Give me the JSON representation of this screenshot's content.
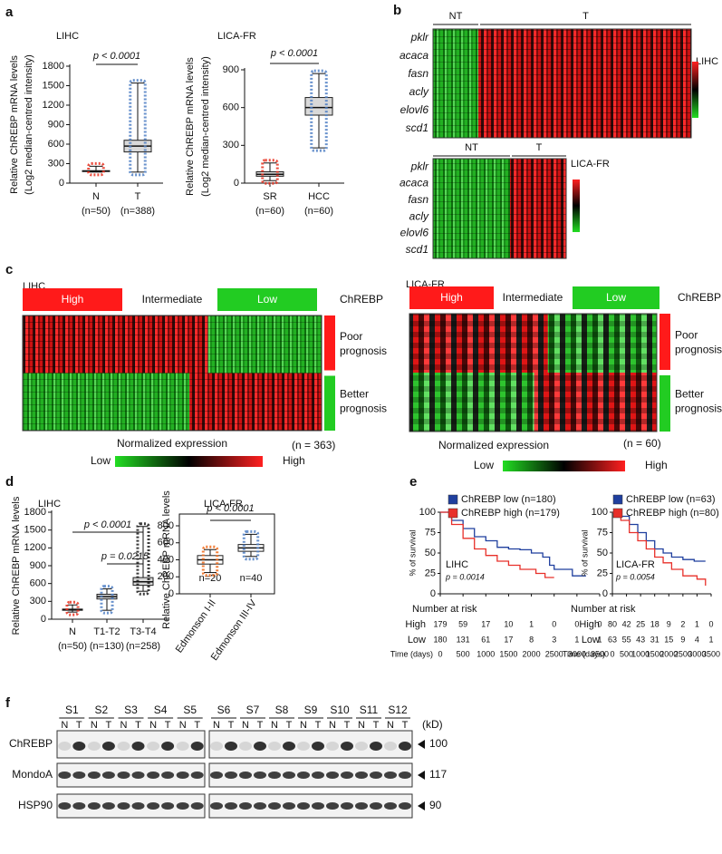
{
  "panel_labels": [
    "a",
    "b",
    "c",
    "d",
    "e",
    "f"
  ],
  "chart_data": [
    {
      "type": "box",
      "title": "LIHC",
      "y_label": [
        "Relative ChREBP mRNA levels",
        "(Log2 median-centred intensity)"
      ],
      "categories": [
        "N",
        "T"
      ],
      "group_sizes": [
        "(n=50)",
        "(n=388)"
      ],
      "boxes": [
        {
          "min": 170,
          "q1": 180,
          "median": 185,
          "q3": 192,
          "max": 260,
          "color": "#e8301f"
        },
        {
          "min": 170,
          "q1": 480,
          "median": 570,
          "q3": 660,
          "max": 1540,
          "color": "#4f7fc4"
        }
      ],
      "box_fill": "#d9d9d9",
      "ylim": [
        0,
        1800
      ],
      "yticks": [
        0,
        300,
        600,
        900,
        1200,
        1500,
        1800
      ],
      "annotations": [
        {
          "text": "p < 0.0001",
          "between": [
            "N",
            "T"
          ]
        }
      ]
    },
    {
      "type": "box",
      "title": "LICA-FR",
      "y_label": [
        "Relative ChREBP mRNA levels",
        "(Log2 median-centred intensity)"
      ],
      "categories": [
        "SR",
        "HCC"
      ],
      "group_sizes": [
        "(n=60)",
        "(n=60)"
      ],
      "boxes": [
        {
          "min": 20,
          "q1": 55,
          "median": 70,
          "q3": 90,
          "max": 160,
          "color": "#e8301f"
        },
        {
          "min": 280,
          "q1": 540,
          "median": 600,
          "q3": 680,
          "max": 870,
          "color": "#4f7fc4"
        }
      ],
      "box_fill": "#d9d9d9",
      "ylim": [
        0,
        900
      ],
      "yticks": [
        0,
        300,
        600,
        900
      ],
      "annotations": [
        {
          "text": "p < 0.0001",
          "between": [
            "SR",
            "HCC"
          ]
        }
      ]
    },
    {
      "type": "box",
      "title": "LIHC",
      "y_label": "Relative ChREBP mRNA levels",
      "categories": [
        "N",
        "T1-T2",
        "T3-T4"
      ],
      "group_sizes": [
        "(n=50)",
        "(n=130)",
        "(n=258)"
      ],
      "boxes": [
        {
          "min": 120,
          "q1": 150,
          "median": 160,
          "q3": 170,
          "max": 240,
          "color": "#e8301f"
        },
        {
          "min": 150,
          "q1": 340,
          "median": 380,
          "q3": 420,
          "max": 510,
          "color": "#4f7fc4"
        },
        {
          "min": 470,
          "q1": 570,
          "median": 630,
          "q3": 700,
          "max": 1560,
          "color": "#1a1a1a"
        }
      ],
      "box_fill": "#d9d9d9",
      "ylim": [
        0,
        1800
      ],
      "yticks": [
        0,
        300,
        600,
        900,
        1200,
        1500,
        1800
      ],
      "annotations": [
        {
          "text": "p < 0.0001",
          "between": [
            "N",
            "T3-T4"
          ]
        },
        {
          "text": "p = 0.0215",
          "between": [
            "T1-T2",
            "T3-T4"
          ]
        }
      ]
    },
    {
      "type": "box",
      "title": "LICA-FR",
      "y_label": "Relative ChREBP mRNA levels",
      "categories": [
        "Edmonson I-II",
        "Edmonson III-IV"
      ],
      "group_sizes": [
        "n=20",
        "n=40"
      ],
      "boxes": [
        {
          "min": 250,
          "q1": 350,
          "median": 400,
          "q3": 450,
          "max": 520,
          "color": "#f06a1a"
        },
        {
          "min": 440,
          "q1": 500,
          "median": 540,
          "q3": 580,
          "max": 700,
          "color": "#4f7fc4"
        }
      ],
      "box_fill": "#ffffff",
      "frame": true,
      "ylim": [
        0,
        800
      ],
      "yticks": [
        0,
        200,
        400,
        600,
        800
      ],
      "annotations": [
        {
          "text": "p < 0.0001",
          "between": [
            "Edmonson I-II",
            "Edmonson III-IV"
          ]
        }
      ]
    },
    {
      "type": "km",
      "title": "LIHC",
      "p_value": "p = 0.0014",
      "y_label": "% of survival",
      "xlim": [
        0,
        3500
      ],
      "xticks": [
        0,
        500,
        1000,
        1500,
        2000,
        2500,
        3000,
        3500
      ],
      "ylim": [
        0,
        100
      ],
      "yticks": [
        0,
        25,
        50,
        75,
        100
      ],
      "series": [
        {
          "name": "ChREBP low (n=180)",
          "color": "#1f3f9e",
          "x": [
            0,
            250,
            500,
            750,
            1000,
            1250,
            1500,
            1750,
            2000,
            2250,
            2400,
            2500,
            2900,
            3200
          ],
          "values": [
            100,
            90,
            80,
            70,
            65,
            57,
            55,
            54,
            50,
            45,
            35,
            30,
            22,
            22
          ]
        },
        {
          "name": "ChREBP high (n=179)",
          "color": "#e8302a",
          "x": [
            0,
            250,
            500,
            750,
            1000,
            1250,
            1500,
            1750,
            2000,
            2100,
            2300,
            2500
          ],
          "values": [
            100,
            85,
            68,
            55,
            47,
            40,
            35,
            30,
            30,
            25,
            20,
            20
          ]
        }
      ],
      "risk_table": {
        "title": "Number at risk",
        "x_label": "Time (days)",
        "rows": [
          {
            "name": "High",
            "color": "#e8302a",
            "values": [
              179,
              59,
              17,
              10,
              1,
              0,
              0,
              0
            ]
          },
          {
            "name": "Low",
            "color": "#1f3f9e",
            "values": [
              180,
              131,
              61,
              17,
              8,
              3,
              1,
              1
            ]
          }
        ]
      }
    },
    {
      "type": "km",
      "title": "LICA-FR",
      "p_value": "p = 0.0054",
      "y_label": "% of survival",
      "xlim": [
        0,
        3500
      ],
      "xticks": [
        0,
        500,
        1000,
        1500,
        2000,
        2500,
        3000,
        3500
      ],
      "ylim": [
        0,
        100
      ],
      "yticks": [
        0,
        25,
        50,
        75,
        100
      ],
      "series": [
        {
          "name": "ChREBP low (n=63)",
          "color": "#1f3f9e",
          "x": [
            0,
            300,
            600,
            900,
            1200,
            1500,
            1800,
            2100,
            2500,
            2900,
            3300
          ],
          "values": [
            100,
            95,
            85,
            75,
            65,
            55,
            50,
            45,
            42,
            40,
            40
          ]
        },
        {
          "name": "ChREBP high (n=80)",
          "color": "#e8302a",
          "x": [
            0,
            300,
            600,
            900,
            1200,
            1500,
            1800,
            2100,
            2500,
            3000,
            3300
          ],
          "values": [
            100,
            90,
            75,
            65,
            55,
            45,
            38,
            30,
            22,
            18,
            10
          ]
        }
      ],
      "risk_table": {
        "title": "Number at risk",
        "x_label": "Time (days)",
        "rows": [
          {
            "name": "High",
            "color": "#e8302a",
            "values": [
              80,
              42,
              25,
              18,
              9,
              2,
              1,
              0
            ]
          },
          {
            "name": "Low",
            "color": "#1f3f9e",
            "values": [
              63,
              55,
              43,
              31,
              15,
              9,
              4,
              1
            ]
          }
        ]
      }
    }
  ],
  "heatmaps": [
    {
      "title": "LIHC",
      "groups": [
        "NT",
        "T"
      ],
      "genes": [
        "pklr",
        "acaca",
        "fasn",
        "acly",
        "elovl6",
        "scd1"
      ]
    },
    {
      "title": "LICA-FR",
      "groups": [
        "NT",
        "T"
      ],
      "genes": [
        "pklr",
        "acaca",
        "fasn",
        "acly",
        "elovl6",
        "scd1"
      ]
    }
  ],
  "clusters": [
    {
      "title": "LIHC",
      "groups": [
        "High",
        "Intermediate",
        "Low"
      ],
      "group_label": "ChREBP",
      "prognosis": [
        [
          "Poor",
          "prognosis"
        ],
        [
          "Better",
          "prognosis"
        ]
      ],
      "scale_title": "Normalized expression",
      "scale_ends": [
        "Low",
        "High"
      ],
      "n": "(n = 363)"
    },
    {
      "title": "LICA-FR",
      "groups": [
        "High",
        "Intermediate",
        "Low"
      ],
      "group_label": "ChREBP",
      "prognosis": [
        [
          "Poor",
          "prognosis"
        ],
        [
          "Better",
          "prognosis"
        ]
      ],
      "scale_title": "Normalized expression",
      "scale_ends": [
        "Low",
        "High"
      ],
      "n": "(n = 60)"
    }
  ],
  "blot": {
    "samples": [
      "S1",
      "S2",
      "S3",
      "S4",
      "S5",
      "S6",
      "S7",
      "S8",
      "S9",
      "S10",
      "S11",
      "S12"
    ],
    "lanes": [
      "N",
      "T"
    ],
    "unit": "(kD)",
    "proteins": [
      "ChREBP",
      "MondoA",
      "HSP90"
    ],
    "markers": [
      100,
      117,
      90
    ]
  }
}
